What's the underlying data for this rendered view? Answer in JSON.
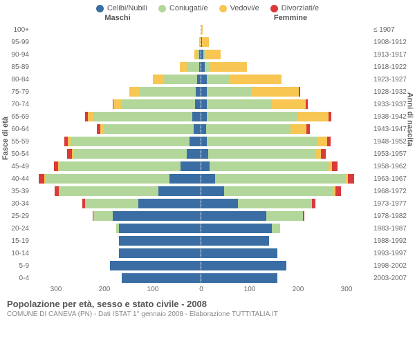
{
  "legend": [
    {
      "label": "Celibi/Nubili",
      "color": "#3a6da3"
    },
    {
      "label": "Coniugati/e",
      "color": "#b3d69b"
    },
    {
      "label": "Vedovi/e",
      "color": "#f7c653"
    },
    {
      "label": "Divorziati/e",
      "color": "#d93a3a"
    }
  ],
  "headers": {
    "male": "Maschi",
    "female": "Femmine"
  },
  "yaxis_left_title": "Fasce di età",
  "yaxis_right_title": "Anni di nascita",
  "xaxis": {
    "max": 300,
    "ticks_left": [
      "300",
      "200",
      "100",
      "0"
    ],
    "ticks_right": [
      "0",
      "100",
      "200",
      "300"
    ]
  },
  "colors": {
    "celibi": "#3a6da3",
    "coniugati": "#b3d69b",
    "vedovi": "#f7c653",
    "divorziati": "#d93a3a",
    "grid": "#dddddd",
    "bg": "#ffffff"
  },
  "rows": [
    {
      "age": "100+",
      "birth": "≤ 1907",
      "m": {
        "c": 0,
        "co": 0,
        "v": 0,
        "d": 0
      },
      "f": {
        "c": 0,
        "co": 0,
        "v": 2,
        "d": 0
      }
    },
    {
      "age": "95-99",
      "birth": "1908-1912",
      "m": {
        "c": 0,
        "co": 0,
        "v": 2,
        "d": 0
      },
      "f": {
        "c": 1,
        "co": 0,
        "v": 12,
        "d": 0
      }
    },
    {
      "age": "90-94",
      "birth": "1913-1917",
      "m": {
        "c": 2,
        "co": 3,
        "v": 6,
        "d": 0
      },
      "f": {
        "c": 4,
        "co": 2,
        "v": 28,
        "d": 0
      }
    },
    {
      "age": "85-89",
      "birth": "1918-1922",
      "m": {
        "c": 3,
        "co": 22,
        "v": 12,
        "d": 0
      },
      "f": {
        "c": 6,
        "co": 10,
        "v": 65,
        "d": 0
      }
    },
    {
      "age": "80-84",
      "birth": "1923-1927",
      "m": {
        "c": 6,
        "co": 60,
        "v": 18,
        "d": 0
      },
      "f": {
        "c": 10,
        "co": 40,
        "v": 92,
        "d": 0
      }
    },
    {
      "age": "75-79",
      "birth": "1928-1932",
      "m": {
        "c": 8,
        "co": 100,
        "v": 18,
        "d": 0
      },
      "f": {
        "c": 10,
        "co": 78,
        "v": 85,
        "d": 2
      }
    },
    {
      "age": "70-74",
      "birth": "1933-1937",
      "m": {
        "c": 10,
        "co": 130,
        "v": 14,
        "d": 2
      },
      "f": {
        "c": 10,
        "co": 115,
        "v": 60,
        "d": 3
      }
    },
    {
      "age": "65-69",
      "birth": "1938-1942",
      "m": {
        "c": 15,
        "co": 175,
        "v": 10,
        "d": 5
      },
      "f": {
        "c": 10,
        "co": 160,
        "v": 55,
        "d": 5
      }
    },
    {
      "age": "60-64",
      "birth": "1943-1947",
      "m": {
        "c": 12,
        "co": 160,
        "v": 6,
        "d": 6
      },
      "f": {
        "c": 8,
        "co": 150,
        "v": 28,
        "d": 6
      }
    },
    {
      "age": "55-59",
      "birth": "1948-1952",
      "m": {
        "c": 20,
        "co": 210,
        "v": 5,
        "d": 6
      },
      "f": {
        "c": 10,
        "co": 195,
        "v": 18,
        "d": 6
      }
    },
    {
      "age": "50-54",
      "birth": "1953-1957",
      "m": {
        "c": 25,
        "co": 200,
        "v": 3,
        "d": 8
      },
      "f": {
        "c": 12,
        "co": 190,
        "v": 10,
        "d": 8
      }
    },
    {
      "age": "45-49",
      "birth": "1958-1962",
      "m": {
        "c": 35,
        "co": 215,
        "v": 2,
        "d": 8
      },
      "f": {
        "c": 15,
        "co": 210,
        "v": 6,
        "d": 10
      }
    },
    {
      "age": "40-44",
      "birth": "1963-1967",
      "m": {
        "c": 55,
        "co": 220,
        "v": 2,
        "d": 10
      },
      "f": {
        "c": 25,
        "co": 230,
        "v": 4,
        "d": 12
      }
    },
    {
      "age": "35-39",
      "birth": "1968-1972",
      "m": {
        "c": 75,
        "co": 175,
        "v": 1,
        "d": 8
      },
      "f": {
        "c": 40,
        "co": 195,
        "v": 2,
        "d": 10
      }
    },
    {
      "age": "30-34",
      "birth": "1973-1977",
      "m": {
        "c": 110,
        "co": 95,
        "v": 0,
        "d": 4
      },
      "f": {
        "c": 65,
        "co": 130,
        "v": 1,
        "d": 6
      }
    },
    {
      "age": "25-29",
      "birth": "1978-1982",
      "m": {
        "c": 155,
        "co": 35,
        "v": 0,
        "d": 1
      },
      "f": {
        "c": 115,
        "co": 65,
        "v": 0,
        "d": 2
      }
    },
    {
      "age": "20-24",
      "birth": "1983-1987",
      "m": {
        "c": 145,
        "co": 5,
        "v": 0,
        "d": 0
      },
      "f": {
        "c": 125,
        "co": 15,
        "v": 0,
        "d": 0
      }
    },
    {
      "age": "15-19",
      "birth": "1988-1992",
      "m": {
        "c": 145,
        "co": 0,
        "v": 0,
        "d": 0
      },
      "f": {
        "c": 120,
        "co": 0,
        "v": 0,
        "d": 0
      }
    },
    {
      "age": "10-14",
      "birth": "1993-1997",
      "m": {
        "c": 145,
        "co": 0,
        "v": 0,
        "d": 0
      },
      "f": {
        "c": 135,
        "co": 0,
        "v": 0,
        "d": 0
      }
    },
    {
      "age": "5-9",
      "birth": "1998-2002",
      "m": {
        "c": 160,
        "co": 0,
        "v": 0,
        "d": 0
      },
      "f": {
        "c": 150,
        "co": 0,
        "v": 0,
        "d": 0
      }
    },
    {
      "age": "0-4",
      "birth": "2003-2007",
      "m": {
        "c": 140,
        "co": 0,
        "v": 0,
        "d": 0
      },
      "f": {
        "c": 135,
        "co": 0,
        "v": 0,
        "d": 0
      }
    }
  ],
  "footer": {
    "title": "Popolazione per età, sesso e stato civile - 2008",
    "subtitle": "COMUNE DI CANEVA (PN) - Dati ISTAT 1° gennaio 2008 - Elaborazione TUTTITALIA.IT"
  }
}
